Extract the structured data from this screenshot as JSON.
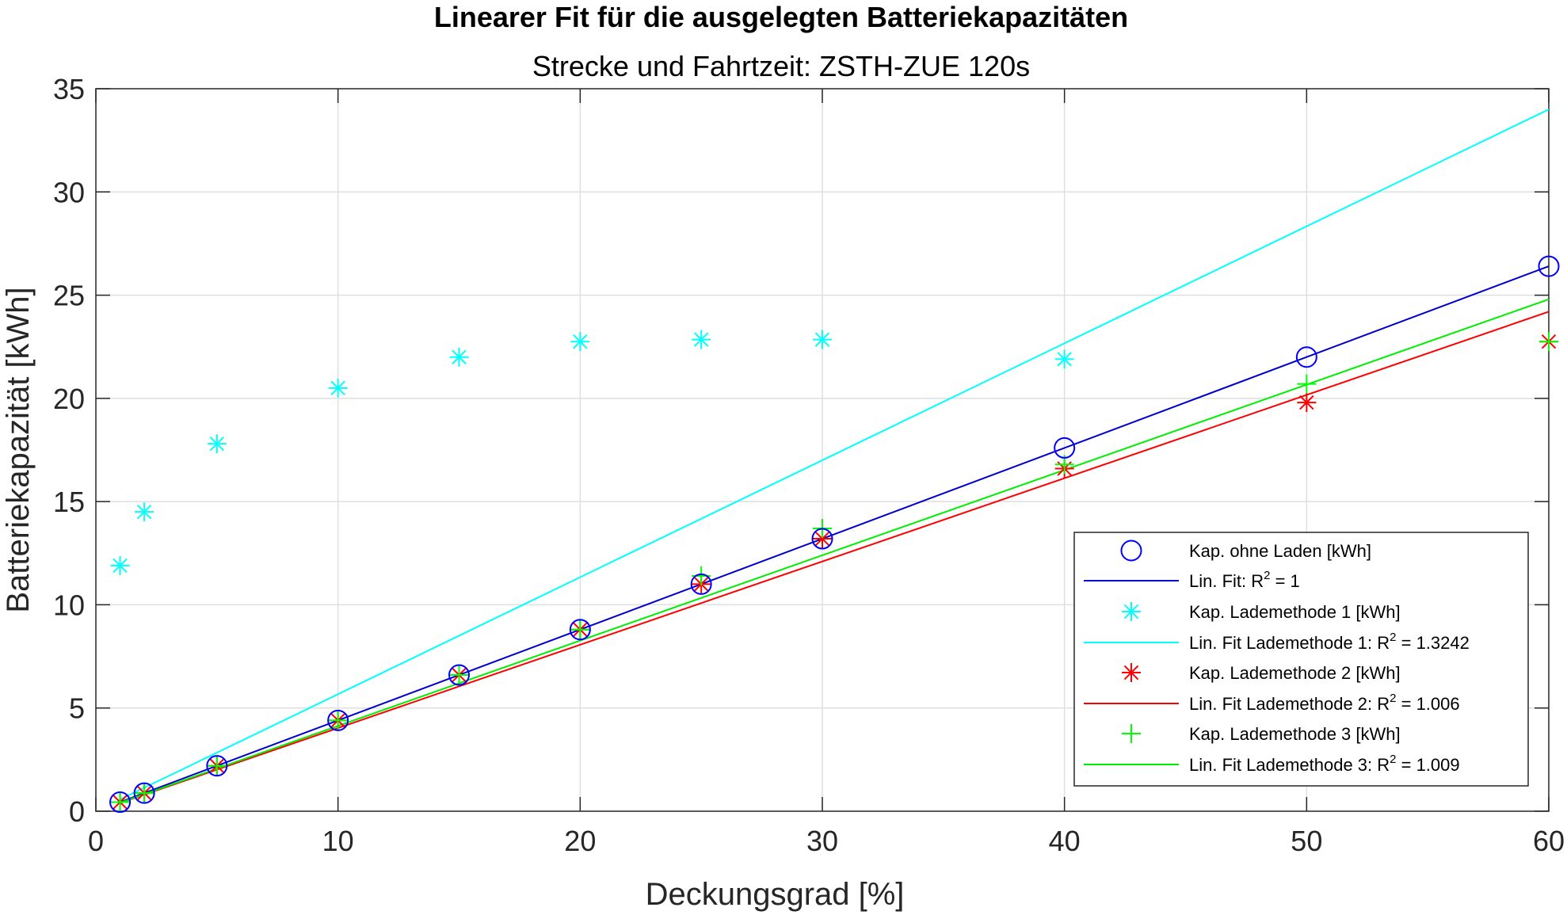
{
  "chart_data": {
    "type": "scatter",
    "title": "Linearer Fit für die ausgelegten Batteriekapazitäten",
    "subtitle": "Strecke und Fahrtzeit: ZSTH-ZUE 120s",
    "xlabel": "Deckungsgrad [%]",
    "ylabel": "Batteriekapazität [kWh]",
    "xlim": [
      0,
      60
    ],
    "ylim": [
      0,
      35
    ],
    "xticks": [
      0,
      10,
      20,
      30,
      40,
      50,
      60
    ],
    "yticks": [
      0,
      5,
      10,
      15,
      20,
      25,
      30,
      35
    ],
    "grid": true,
    "legend_position": "bottom-right",
    "series": [
      {
        "name": "Kap. ohne Laden [kWh]",
        "kind": "markers",
        "marker": "circle",
        "color": "#0000ff",
        "x": [
          1,
          2,
          5,
          10,
          15,
          20,
          25,
          30,
          40,
          50,
          60
        ],
        "y": [
          0.44,
          0.88,
          2.2,
          4.4,
          6.6,
          8.8,
          11.0,
          13.2,
          17.6,
          22.0,
          26.4
        ]
      },
      {
        "name": "Lin. Fit: R",
        "name_sup": "2",
        "name_tail": " = 1",
        "kind": "line",
        "color": "#0000cc",
        "x": [
          1,
          60
        ],
        "y": [
          0.44,
          26.4
        ]
      },
      {
        "name": "Kap. Lademethode 1 [kWh]",
        "kind": "markers",
        "marker": "asterisk",
        "color": "#00ffff",
        "x": [
          1,
          2,
          5,
          10,
          15,
          20,
          25,
          30,
          40
        ],
        "y": [
          11.9,
          14.5,
          17.8,
          20.5,
          22.0,
          22.75,
          22.85,
          22.85,
          21.9
        ]
      },
      {
        "name": "Lin. Fit Lademethode 1: R",
        "name_sup": "2",
        "name_tail": " = 1.3242",
        "kind": "line",
        "color": "#00ffff",
        "x": [
          1,
          60
        ],
        "y": [
          0.57,
          34.0
        ]
      },
      {
        "name": "Kap. Lademethode 2 [kWh]",
        "kind": "markers",
        "marker": "asterisk",
        "color": "#ff0000",
        "x": [
          1,
          2,
          5,
          10,
          15,
          20,
          25,
          30,
          40,
          50,
          60
        ],
        "y": [
          0.44,
          0.88,
          2.2,
          4.4,
          6.6,
          8.8,
          11.0,
          13.2,
          16.6,
          19.8,
          22.75
        ]
      },
      {
        "name": "Lin. Fit Lademethode 2: R",
        "name_sup": "2",
        "name_tail": " = 1.006",
        "kind": "line",
        "color": "#ff0000",
        "x": [
          1,
          60
        ],
        "y": [
          0.4,
          24.2
        ]
      },
      {
        "name": "Kap. Lademethode 3 [kWh]",
        "kind": "markers",
        "marker": "plus",
        "color": "#00ff00",
        "x": [
          1,
          2,
          5,
          10,
          15,
          20,
          25,
          30,
          40,
          50,
          60
        ],
        "y": [
          0.44,
          0.88,
          2.2,
          4.4,
          6.6,
          8.8,
          11.4,
          13.7,
          16.8,
          20.7,
          22.75
        ]
      },
      {
        "name": "Lin. Fit Lademethode 3: R",
        "name_sup": "2",
        "name_tail": " = 1.009",
        "kind": "line",
        "color": "#00ee00",
        "x": [
          1,
          60
        ],
        "y": [
          0.41,
          24.8
        ]
      }
    ]
  }
}
